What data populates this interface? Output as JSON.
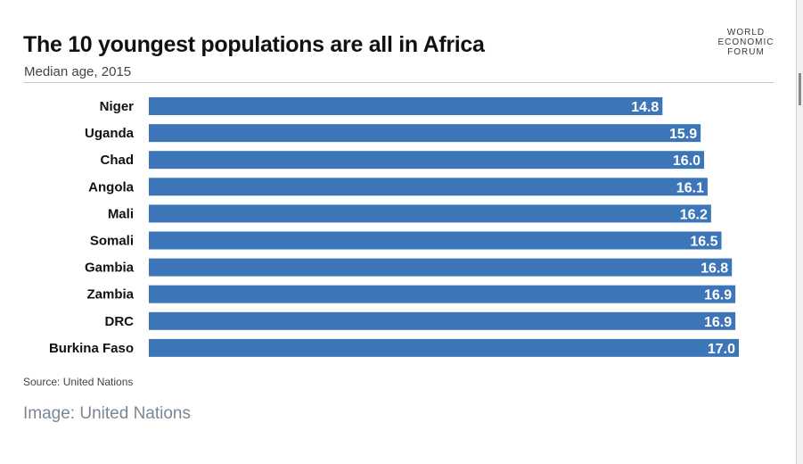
{
  "header": {
    "title": "The 10 youngest populations are all in Africa",
    "subtitle": "Median age, 2015",
    "logo": [
      "WORLD",
      "ECONOMIC",
      "FORUM"
    ]
  },
  "footer": {
    "source": "Source: United Nations",
    "caption": "Image: United Nations"
  },
  "colors": {
    "bar": "#3d76b8",
    "label": "#ffffff"
  },
  "chart_data": {
    "type": "bar",
    "orientation": "horizontal",
    "title": "The 10 youngest populations are all in Africa",
    "subtitle": "Median age, 2015",
    "categories": [
      "Niger",
      "Uganda",
      "Chad",
      "Angola",
      "Mali",
      "Somali",
      "Gambia",
      "Zambia",
      "DRC",
      "Burkina Faso"
    ],
    "values": [
      14.8,
      15.9,
      16.0,
      16.1,
      16.2,
      16.5,
      16.8,
      16.9,
      16.9,
      17.0
    ],
    "value_labels": [
      "14.8",
      "15.9",
      "16.0",
      "16.1",
      "16.2",
      "16.5",
      "16.8",
      "16.9",
      "16.9",
      "17.0"
    ],
    "xlim": [
      0,
      17.0
    ],
    "grid": false,
    "legend": "none"
  }
}
